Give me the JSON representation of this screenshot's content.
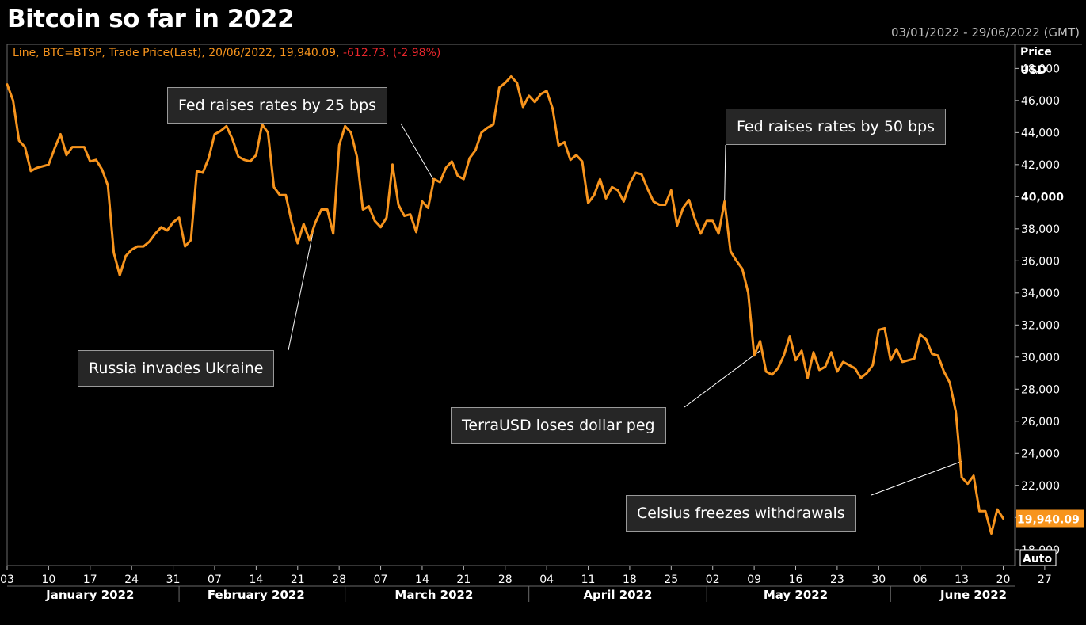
{
  "header": {
    "title": "Bitcoin so far in 2022",
    "date_range": "03/01/2022 - 29/06/2022 (GMT)"
  },
  "legend": {
    "series_info": "Line, BTC=BTSP, Trade Price(Last), 20/06/2022, 19,940.09,",
    "change": "-612.73, (-2.98%)"
  },
  "axis": {
    "y_title_line1": "Price",
    "y_title_line2": "USD",
    "last_price_label": "19,940.09",
    "auto_button": "Auto"
  },
  "colors": {
    "line": "#f7941d",
    "negative": "#e8262c",
    "background": "#000000",
    "annotation_bg": "#262626"
  },
  "chart_data": {
    "type": "line",
    "title": "Bitcoin so far in 2022",
    "series_name": "BTC=BTSP",
    "x_start": "2022-01-03",
    "x_end": "2022-06-27",
    "ylim": [
      17000,
      49500
    ],
    "y_ticks": [
      18000,
      20000,
      22000,
      24000,
      26000,
      28000,
      30000,
      32000,
      34000,
      36000,
      38000,
      40000,
      42000,
      44000,
      46000,
      48000
    ],
    "y_tick_labels": [
      "18,000",
      "20,000",
      "22,000",
      "24,000",
      "26,000",
      "28,000",
      "30,000",
      "32,000",
      "34,000",
      "36,000",
      "38,000",
      "40,000",
      "42,000",
      "44,000",
      "46,000",
      "48,000"
    ],
    "y_bold_tick": "40,000",
    "x_ticks": [
      {
        "date": "2022-01-03",
        "label": "03"
      },
      {
        "date": "2022-01-10",
        "label": "10"
      },
      {
        "date": "2022-01-17",
        "label": "17"
      },
      {
        "date": "2022-01-24",
        "label": "24"
      },
      {
        "date": "2022-01-31",
        "label": "31"
      },
      {
        "date": "2022-02-07",
        "label": "07"
      },
      {
        "date": "2022-02-14",
        "label": "14"
      },
      {
        "date": "2022-02-21",
        "label": "21"
      },
      {
        "date": "2022-02-28",
        "label": "28"
      },
      {
        "date": "2022-03-07",
        "label": "07"
      },
      {
        "date": "2022-03-14",
        "label": "14"
      },
      {
        "date": "2022-03-21",
        "label": "21"
      },
      {
        "date": "2022-03-28",
        "label": "28"
      },
      {
        "date": "2022-04-04",
        "label": "04"
      },
      {
        "date": "2022-04-11",
        "label": "11"
      },
      {
        "date": "2022-04-18",
        "label": "18"
      },
      {
        "date": "2022-04-25",
        "label": "25"
      },
      {
        "date": "2022-05-02",
        "label": "02"
      },
      {
        "date": "2022-05-09",
        "label": "09"
      },
      {
        "date": "2022-05-16",
        "label": "16"
      },
      {
        "date": "2022-05-23",
        "label": "23"
      },
      {
        "date": "2022-05-30",
        "label": "30"
      },
      {
        "date": "2022-06-06",
        "label": "06"
      },
      {
        "date": "2022-06-13",
        "label": "13"
      },
      {
        "date": "2022-06-20",
        "label": "20"
      },
      {
        "date": "2022-06-27",
        "label": "27"
      }
    ],
    "months": [
      {
        "label": "January 2022",
        "center": "2022-01-17"
      },
      {
        "label": "February 2022",
        "center": "2022-02-14"
      },
      {
        "label": "March 2022",
        "center": "2022-03-16"
      },
      {
        "label": "April 2022",
        "center": "2022-04-16"
      },
      {
        "label": "May 2022",
        "center": "2022-05-16"
      },
      {
        "label": "June 2022",
        "center": "2022-06-15"
      }
    ],
    "month_boundaries": [
      "2022-02-01",
      "2022-03-01",
      "2022-04-01",
      "2022-05-01",
      "2022-06-01"
    ],
    "points": [
      [
        "2022-01-03",
        47000
      ],
      [
        "2022-01-04",
        46000
      ],
      [
        "2022-01-05",
        43500
      ],
      [
        "2022-01-06",
        43100
      ],
      [
        "2022-01-07",
        41600
      ],
      [
        "2022-01-08",
        41800
      ],
      [
        "2022-01-09",
        41900
      ],
      [
        "2022-01-10",
        42000
      ],
      [
        "2022-01-11",
        43000
      ],
      [
        "2022-01-12",
        43900
      ],
      [
        "2022-01-13",
        42600
      ],
      [
        "2022-01-14",
        43100
      ],
      [
        "2022-01-15",
        43100
      ],
      [
        "2022-01-16",
        43100
      ],
      [
        "2022-01-17",
        42200
      ],
      [
        "2022-01-18",
        42300
      ],
      [
        "2022-01-19",
        41700
      ],
      [
        "2022-01-20",
        40700
      ],
      [
        "2022-01-21",
        36500
      ],
      [
        "2022-01-22",
        35100
      ],
      [
        "2022-01-23",
        36300
      ],
      [
        "2022-01-24",
        36700
      ],
      [
        "2022-01-25",
        36900
      ],
      [
        "2022-01-26",
        36900
      ],
      [
        "2022-01-27",
        37200
      ],
      [
        "2022-01-28",
        37700
      ],
      [
        "2022-01-29",
        38100
      ],
      [
        "2022-01-30",
        37900
      ],
      [
        "2022-01-31",
        38400
      ],
      [
        "2022-02-01",
        38700
      ],
      [
        "2022-02-02",
        36900
      ],
      [
        "2022-02-03",
        37300
      ],
      [
        "2022-02-04",
        41600
      ],
      [
        "2022-02-05",
        41500
      ],
      [
        "2022-02-06",
        42400
      ],
      [
        "2022-02-07",
        43900
      ],
      [
        "2022-02-08",
        44100
      ],
      [
        "2022-02-09",
        44400
      ],
      [
        "2022-02-10",
        43600
      ],
      [
        "2022-02-11",
        42500
      ],
      [
        "2022-02-12",
        42300
      ],
      [
        "2022-02-13",
        42200
      ],
      [
        "2022-02-14",
        42600
      ],
      [
        "2022-02-15",
        44500
      ],
      [
        "2022-02-16",
        44000
      ],
      [
        "2022-02-17",
        40600
      ],
      [
        "2022-02-18",
        40100
      ],
      [
        "2022-02-19",
        40100
      ],
      [
        "2022-02-20",
        38400
      ],
      [
        "2022-02-21",
        37100
      ],
      [
        "2022-02-22",
        38300
      ],
      [
        "2022-02-23",
        37300
      ],
      [
        "2022-02-24",
        38400
      ],
      [
        "2022-02-25",
        39200
      ],
      [
        "2022-02-26",
        39200
      ],
      [
        "2022-02-27",
        37700
      ],
      [
        "2022-02-28",
        43200
      ],
      [
        "2022-03-01",
        44400
      ],
      [
        "2022-03-02",
        44000
      ],
      [
        "2022-03-03",
        42500
      ],
      [
        "2022-03-04",
        39200
      ],
      [
        "2022-03-05",
        39400
      ],
      [
        "2022-03-06",
        38500
      ],
      [
        "2022-03-07",
        38100
      ],
      [
        "2022-03-08",
        38700
      ],
      [
        "2022-03-09",
        42000
      ],
      [
        "2022-03-10",
        39500
      ],
      [
        "2022-03-11",
        38800
      ],
      [
        "2022-03-12",
        38900
      ],
      [
        "2022-03-13",
        37800
      ],
      [
        "2022-03-14",
        39700
      ],
      [
        "2022-03-15",
        39300
      ],
      [
        "2022-03-16",
        41100
      ],
      [
        "2022-03-17",
        40900
      ],
      [
        "2022-03-18",
        41800
      ],
      [
        "2022-03-19",
        42200
      ],
      [
        "2022-03-20",
        41300
      ],
      [
        "2022-03-21",
        41100
      ],
      [
        "2022-03-22",
        42400
      ],
      [
        "2022-03-23",
        42900
      ],
      [
        "2022-03-24",
        44000
      ],
      [
        "2022-03-25",
        44300
      ],
      [
        "2022-03-26",
        44500
      ],
      [
        "2022-03-27",
        46800
      ],
      [
        "2022-03-28",
        47100
      ],
      [
        "2022-03-29",
        47500
      ],
      [
        "2022-03-30",
        47100
      ],
      [
        "2022-03-31",
        45600
      ],
      [
        "2022-04-01",
        46300
      ],
      [
        "2022-04-02",
        45900
      ],
      [
        "2022-04-03",
        46400
      ],
      [
        "2022-04-04",
        46600
      ],
      [
        "2022-04-05",
        45500
      ],
      [
        "2022-04-06",
        43200
      ],
      [
        "2022-04-07",
        43400
      ],
      [
        "2022-04-08",
        42300
      ],
      [
        "2022-04-09",
        42600
      ],
      [
        "2022-04-10",
        42200
      ],
      [
        "2022-04-11",
        39600
      ],
      [
        "2022-04-12",
        40100
      ],
      [
        "2022-04-13",
        41100
      ],
      [
        "2022-04-14",
        39900
      ],
      [
        "2022-04-15",
        40600
      ],
      [
        "2022-04-16",
        40400
      ],
      [
        "2022-04-17",
        39700
      ],
      [
        "2022-04-18",
        40800
      ],
      [
        "2022-04-19",
        41500
      ],
      [
        "2022-04-20",
        41400
      ],
      [
        "2022-04-21",
        40500
      ],
      [
        "2022-04-22",
        39700
      ],
      [
        "2022-04-23",
        39500
      ],
      [
        "2022-04-24",
        39500
      ],
      [
        "2022-04-25",
        40400
      ],
      [
        "2022-04-26",
        38200
      ],
      [
        "2022-04-27",
        39300
      ],
      [
        "2022-04-28",
        39800
      ],
      [
        "2022-04-29",
        38600
      ],
      [
        "2022-04-30",
        37700
      ],
      [
        "2022-05-01",
        38500
      ],
      [
        "2022-05-02",
        38500
      ],
      [
        "2022-05-03",
        37700
      ],
      [
        "2022-05-04",
        39700
      ],
      [
        "2022-05-05",
        36600
      ],
      [
        "2022-05-06",
        36000
      ],
      [
        "2022-05-07",
        35500
      ],
      [
        "2022-05-08",
        34000
      ],
      [
        "2022-05-09",
        30100
      ],
      [
        "2022-05-10",
        31000
      ],
      [
        "2022-05-11",
        29100
      ],
      [
        "2022-05-12",
        28900
      ],
      [
        "2022-05-13",
        29300
      ],
      [
        "2022-05-14",
        30100
      ],
      [
        "2022-05-15",
        31300
      ],
      [
        "2022-05-16",
        29800
      ],
      [
        "2022-05-17",
        30400
      ],
      [
        "2022-05-18",
        28700
      ],
      [
        "2022-05-19",
        30300
      ],
      [
        "2022-05-20",
        29200
      ],
      [
        "2022-05-21",
        29400
      ],
      [
        "2022-05-22",
        30300
      ],
      [
        "2022-05-23",
        29100
      ],
      [
        "2022-05-24",
        29700
      ],
      [
        "2022-05-25",
        29500
      ],
      [
        "2022-05-26",
        29300
      ],
      [
        "2022-05-27",
        28700
      ],
      [
        "2022-05-28",
        29000
      ],
      [
        "2022-05-29",
        29500
      ],
      [
        "2022-05-30",
        31700
      ],
      [
        "2022-05-31",
        31800
      ],
      [
        "2022-06-01",
        29800
      ],
      [
        "2022-06-02",
        30500
      ],
      [
        "2022-06-03",
        29700
      ],
      [
        "2022-06-04",
        29800
      ],
      [
        "2022-06-05",
        29900
      ],
      [
        "2022-06-06",
        31400
      ],
      [
        "2022-06-07",
        31100
      ],
      [
        "2022-06-08",
        30200
      ],
      [
        "2022-06-09",
        30100
      ],
      [
        "2022-06-10",
        29100
      ],
      [
        "2022-06-11",
        28400
      ],
      [
        "2022-06-12",
        26600
      ],
      [
        "2022-06-13",
        22500
      ],
      [
        "2022-06-14",
        22100
      ],
      [
        "2022-06-15",
        22600
      ],
      [
        "2022-06-16",
        20400
      ],
      [
        "2022-06-17",
        20400
      ],
      [
        "2022-06-18",
        19000
      ],
      [
        "2022-06-19",
        20500
      ],
      [
        "2022-06-20",
        19940.09
      ]
    ],
    "annotations": [
      {
        "text": "Fed raises rates by 25 bps",
        "date": "2022-03-16",
        "value": 41000
      },
      {
        "text": "Russia invades Ukraine",
        "date": "2022-02-24",
        "value": 38500
      },
      {
        "text": "Fed raises rates by 50 bps",
        "date": "2022-05-04",
        "value": 39700
      },
      {
        "text": "TerraUSD loses dollar peg",
        "date": "2022-05-10",
        "value": 30400
      },
      {
        "text": "Celsius freezes withdrawals",
        "date": "2022-06-13",
        "value": 23500
      }
    ]
  }
}
